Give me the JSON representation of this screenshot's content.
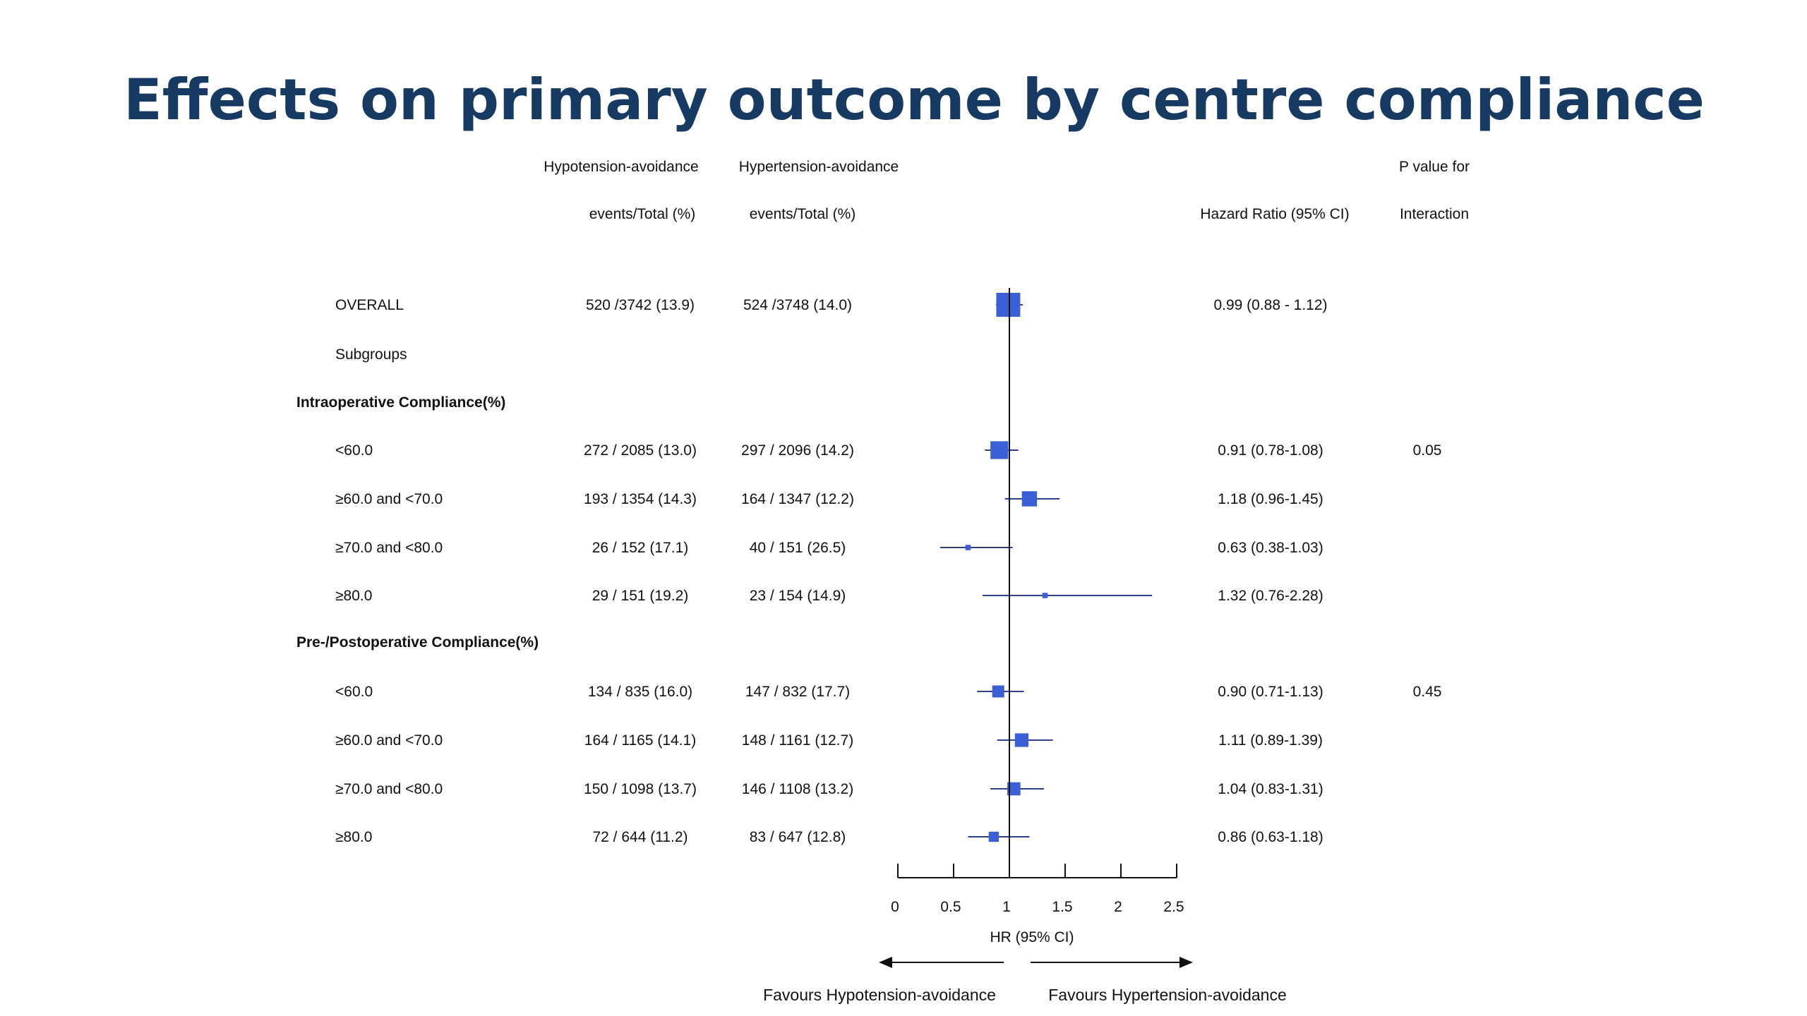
{
  "title": "Effects on primary outcome by centre compliance",
  "headers": {
    "group1_line1": "Hypotension-avoidance",
    "group1_line2": "events/Total  (%)",
    "group2_line1": "Hypertension-avoidance",
    "group2_line2": "events/Total  (%)",
    "hr": "Hazard Ratio (95% CI)",
    "p_line1": "P value  for",
    "p_line2": "Interaction"
  },
  "footer": {
    "axis_title": "HR (95% CI)",
    "favours_left": "Favours Hypotension-avoidance",
    "favours_right": "Favours Hypertension-avoidance"
  },
  "colors": {
    "title": "#173a63",
    "marker": "#3a5fd6",
    "text": "#111111"
  },
  "chart_data": {
    "type": "forest",
    "xlabel": "HR (95% CI)",
    "xlim": [
      0,
      2.5
    ],
    "xticks": [
      "0",
      "0.5",
      "1",
      "1.5",
      "2",
      "2.5"
    ],
    "reference_line": 1,
    "rows": [
      {
        "label": "OVERALL",
        "style": "normal",
        "g1": "520 /3742 (13.9)",
        "g2": "524 /3748 (14.0)",
        "hr_text": "0.99 (0.88 - 1.12)",
        "p": "",
        "hr": 0.99,
        "lo": 0.88,
        "hi": 1.12,
        "weight": 1.0
      },
      {
        "label": "Subgroups",
        "style": "normal"
      },
      {
        "label": "Intraoperative Compliance(%)",
        "style": "bold"
      },
      {
        "label": "<60.0",
        "style": "normal",
        "g1": "272 / 2085 (13.0)",
        "g2": "297 / 2096 (14.2)",
        "hr_text": "0.91 (0.78-1.08)",
        "p": "0.05",
        "hr": 0.91,
        "lo": 0.78,
        "hi": 1.08,
        "weight": 0.55
      },
      {
        "label": "≥60.0 and <70.0",
        "style": "normal",
        "g1": "193 / 1354 (14.3)",
        "g2": "164 / 1347 (12.2)",
        "hr_text": "1.18 (0.96-1.45)",
        "p": "",
        "hr": 1.18,
        "lo": 0.96,
        "hi": 1.45,
        "weight": 0.4
      },
      {
        "label": "≥70.0 and <80.0",
        "style": "normal",
        "g1": "26 / 152 (17.1)",
        "g2": "40 / 151 (26.5)",
        "hr_text": "0.63 (0.38-1.03)",
        "p": "",
        "hr": 0.63,
        "lo": 0.38,
        "hi": 1.03,
        "weight": 0.05
      },
      {
        "label": "≥80.0",
        "style": "normal",
        "g1": "29 / 151 (19.2)",
        "g2": "23 / 154 (14.9)",
        "hr_text": "1.32 (0.76-2.28)",
        "p": "",
        "hr": 1.32,
        "lo": 0.76,
        "hi": 2.28,
        "weight": 0.05
      },
      {
        "label": "Pre-/Postoperative Compliance(%)",
        "style": "bold"
      },
      {
        "label": "<60.0",
        "style": "normal",
        "g1": "134 / 835 (16.0)",
        "g2": "147 / 832 (17.7)",
        "hr_text": "0.90 (0.71-1.13)",
        "p": "0.45",
        "hr": 0.9,
        "lo": 0.71,
        "hi": 1.13,
        "weight": 0.25
      },
      {
        "label": "≥60.0 and <70.0",
        "style": "normal",
        "g1": "164 / 1165 (14.1)",
        "g2": "148 / 1161 (12.7)",
        "hr_text": "1.11 (0.89-1.39)",
        "p": "",
        "hr": 1.11,
        "lo": 0.89,
        "hi": 1.39,
        "weight": 0.32
      },
      {
        "label": "≥70.0 and <80.0",
        "style": "normal",
        "g1": "150 / 1098 (13.7)",
        "g2": "146 / 1108 (13.2)",
        "hr_text": "1.04 (0.83-1.31)",
        "p": "",
        "hr": 1.04,
        "lo": 0.83,
        "hi": 1.31,
        "weight": 0.3
      },
      {
        "label": "≥80.0",
        "style": "normal",
        "g1": "72 / 644 (11.2)",
        "g2": "83 / 647 (12.8)",
        "hr_text": "0.86 (0.63-1.18)",
        "p": "",
        "hr": 0.86,
        "lo": 0.63,
        "hi": 1.18,
        "weight": 0.18
      }
    ]
  }
}
